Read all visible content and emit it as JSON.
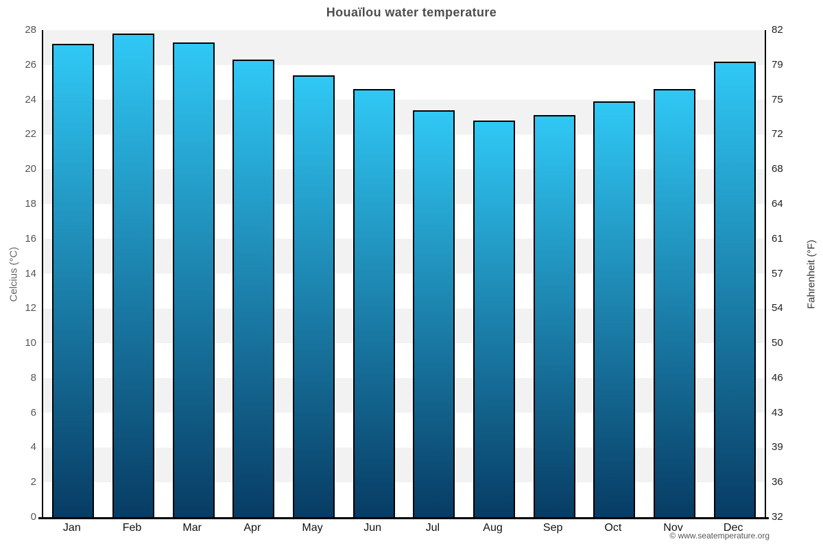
{
  "chart_data": {
    "type": "bar",
    "title": "Houaïlou water temperature",
    "categories": [
      "Jan",
      "Feb",
      "Mar",
      "Apr",
      "May",
      "Jun",
      "Jul",
      "Aug",
      "Sep",
      "Oct",
      "Nov",
      "Dec"
    ],
    "values": [
      27.2,
      27.8,
      27.3,
      26.3,
      25.4,
      24.6,
      23.4,
      22.8,
      23.1,
      23.9,
      24.6,
      26.2
    ],
    "unit": "°C",
    "ylabel_left": "Celcius (°C)",
    "ylabel_right": "Fahrenheit (°F)",
    "ylim": [
      0,
      28
    ],
    "c_ticks": [
      0,
      2,
      4,
      6,
      8,
      10,
      12,
      14,
      16,
      18,
      20,
      22,
      24,
      26,
      28
    ],
    "f_ticks": [
      32,
      36,
      39,
      43,
      46,
      50,
      54,
      57,
      61,
      64,
      68,
      72,
      75,
      79,
      82
    ],
    "grid": "alternating horizontal bands every 2°C",
    "legend": "none",
    "colors": {
      "bar_gradient_top": "#30c8f5",
      "bar_gradient_bottom": "#073c64",
      "bar_border": "#000000",
      "band_gray": "#f2f2f2",
      "band_white": "#ffffff",
      "title_text": "#4d4d4d",
      "axis_text": "#555555"
    }
  },
  "footer": {
    "credit": "© www.seatemperature.org"
  }
}
